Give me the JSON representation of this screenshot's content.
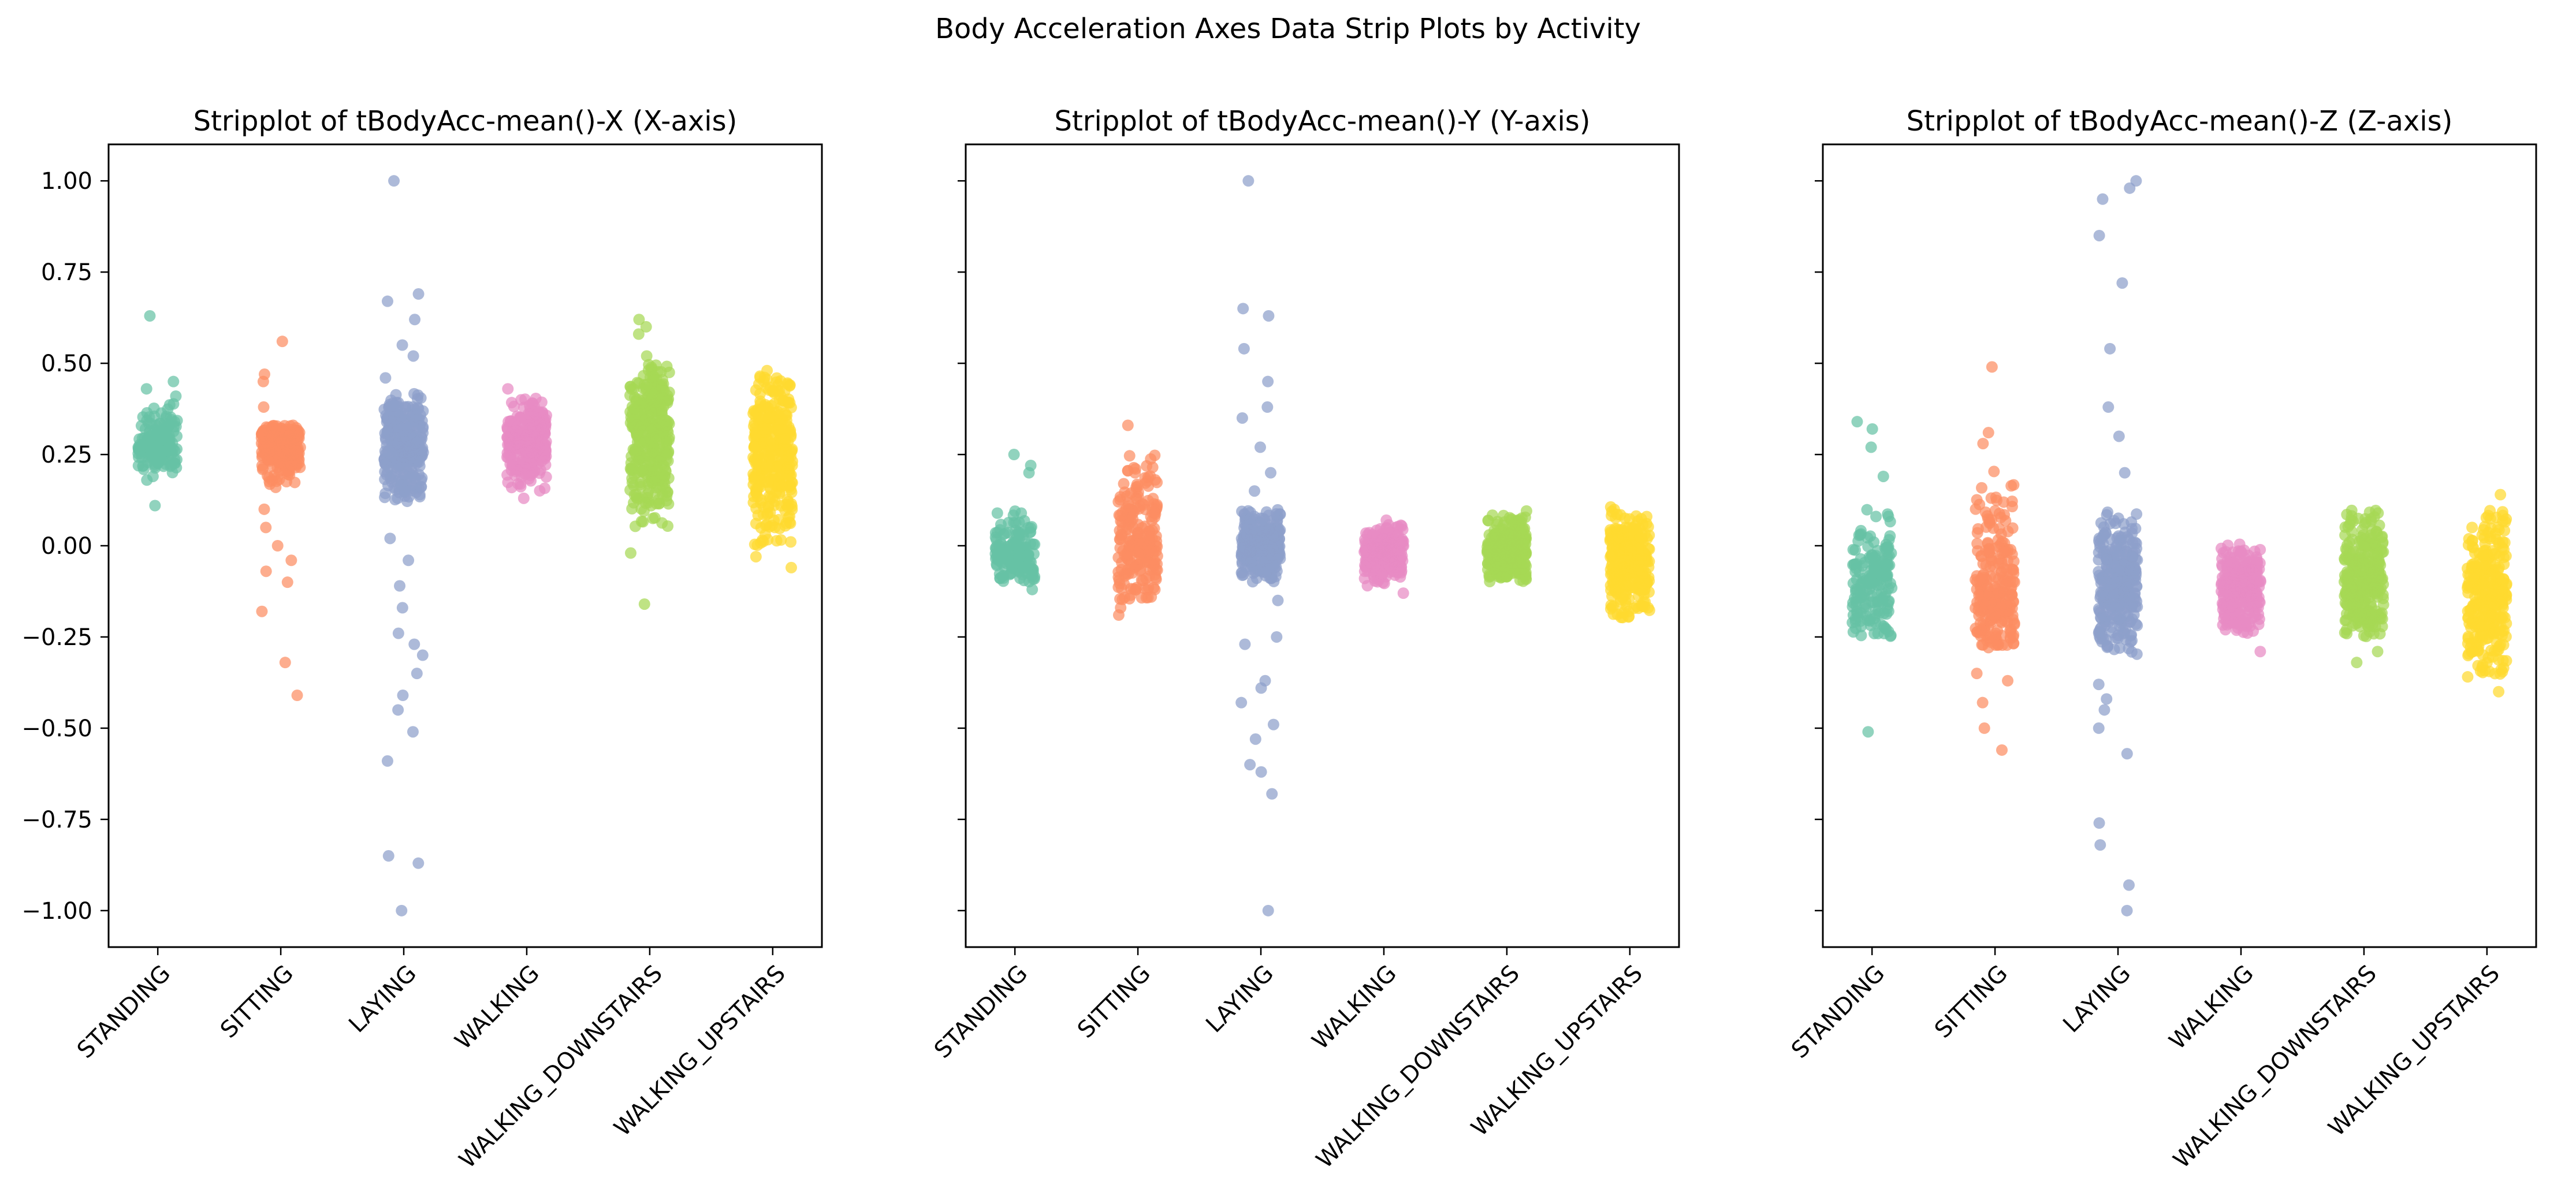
{
  "figure": {
    "suptitle": "Body Acceleration Axes Data Strip Plots by Activity"
  },
  "chart_data": [
    {
      "type": "scatter",
      "subtype": "stripplot",
      "title": "Stripplot of tBodyAcc-mean()-X (X-axis)",
      "xlabel": "",
      "ylabel": "",
      "ylim": [
        -1.1,
        1.1
      ],
      "yticks": [
        -1.0,
        -0.75,
        -0.5,
        -0.25,
        0.0,
        0.25,
        0.5,
        0.75,
        1.0
      ],
      "ytick_labels": [
        "−1.00",
        "−0.75",
        "−0.50",
        "−0.25",
        "0.00",
        "0.25",
        "0.50",
        "0.75",
        "1.00"
      ],
      "shared_y": true,
      "categories": [
        "STANDING",
        "SITTING",
        "LAYING",
        "WALKING",
        "WALKING_DOWNSTAIRS",
        "WALKING_UPSTAIRS"
      ],
      "series": [
        {
          "category": "STANDING",
          "color": "#66c2a5",
          "dense_range": [
            0.2,
            0.4
          ],
          "center": 0.28,
          "outliers": [
            0.63,
            0.45,
            0.43,
            0.41,
            0.19,
            0.18,
            0.11
          ],
          "n": 150
        },
        {
          "category": "SITTING",
          "color": "#fc8d62",
          "dense_range": [
            0.15,
            0.33
          ],
          "center": 0.27,
          "outliers": [
            0.56,
            0.47,
            0.45,
            0.38,
            0.1,
            0.05,
            0.0,
            -0.04,
            -0.07,
            -0.1,
            -0.18,
            -0.32,
            -0.41
          ],
          "n": 220
        },
        {
          "category": "LAYING",
          "color": "#8da0cb",
          "dense_range": [
            0.12,
            0.42
          ],
          "center": 0.27,
          "outliers": [
            1.0,
            0.69,
            0.67,
            0.62,
            0.55,
            0.52,
            0.46,
            0.02,
            -0.04,
            -0.11,
            -0.17,
            -0.24,
            -0.27,
            -0.3,
            -0.35,
            -0.41,
            -0.45,
            -0.51,
            -0.59,
            -0.85,
            -0.87,
            -1.0
          ],
          "n": 280
        },
        {
          "category": "WALKING",
          "color": "#e78ac3",
          "dense_range": [
            0.15,
            0.41
          ],
          "center": 0.28,
          "outliers": [
            0.43,
            0.13
          ],
          "n": 260
        },
        {
          "category": "WALKING_DOWNSTAIRS",
          "color": "#a6d854",
          "dense_range": [
            0.05,
            0.5
          ],
          "center": 0.28,
          "outliers": [
            0.62,
            0.6,
            0.58,
            0.52,
            -0.02,
            -0.16
          ],
          "n": 320
        },
        {
          "category": "WALKING_UPSTAIRS",
          "color": "#ffd92f",
          "dense_range": [
            0.0,
            0.47
          ],
          "center": 0.25,
          "outliers": [
            0.48,
            -0.03,
            -0.06
          ],
          "n": 320
        }
      ]
    },
    {
      "type": "scatter",
      "subtype": "stripplot",
      "title": "Stripplot of tBodyAcc-mean()-Y (Y-axis)",
      "xlabel": "",
      "ylabel": "",
      "ylim": [
        -1.1,
        1.1
      ],
      "shared_y": true,
      "categories": [
        "STANDING",
        "SITTING",
        "LAYING",
        "WALKING",
        "WALKING_DOWNSTAIRS",
        "WALKING_UPSTAIRS"
      ],
      "series": [
        {
          "category": "STANDING",
          "color": "#66c2a5",
          "dense_range": [
            -0.1,
            0.1
          ],
          "center": -0.02,
          "outliers": [
            0.25,
            0.22,
            0.2,
            -0.12
          ],
          "n": 150
        },
        {
          "category": "SITTING",
          "color": "#fc8d62",
          "dense_range": [
            -0.15,
            0.27
          ],
          "center": 0.01,
          "outliers": [
            0.33,
            -0.19,
            -0.17
          ],
          "n": 220
        },
        {
          "category": "LAYING",
          "color": "#8da0cb",
          "dense_range": [
            -0.1,
            0.1
          ],
          "center": 0.0,
          "outliers": [
            1.0,
            0.65,
            0.63,
            0.54,
            0.45,
            0.38,
            0.35,
            0.27,
            0.2,
            0.15,
            -0.15,
            -0.25,
            -0.27,
            -0.37,
            -0.39,
            -0.43,
            -0.49,
            -0.53,
            -0.6,
            -0.62,
            -0.68,
            -1.0
          ],
          "n": 260
        },
        {
          "category": "WALKING",
          "color": "#e78ac3",
          "dense_range": [
            -0.11,
            0.06
          ],
          "center": -0.02,
          "outliers": [
            0.07,
            -0.13
          ],
          "n": 240
        },
        {
          "category": "WALKING_DOWNSTAIRS",
          "color": "#a6d854",
          "dense_range": [
            -0.1,
            0.1
          ],
          "center": -0.01,
          "outliers": [],
          "n": 260
        },
        {
          "category": "WALKING_UPSTAIRS",
          "color": "#ffd92f",
          "dense_range": [
            -0.2,
            0.11
          ],
          "center": -0.05,
          "outliers": [],
          "n": 300
        }
      ]
    },
    {
      "type": "scatter",
      "subtype": "stripplot",
      "title": "Stripplot of tBodyAcc-mean()-Z (Z-axis)",
      "xlabel": "",
      "ylabel": "",
      "ylim": [
        -1.1,
        1.1
      ],
      "shared_y": true,
      "categories": [
        "STANDING",
        "SITTING",
        "LAYING",
        "WALKING",
        "WALKING_DOWNSTAIRS",
        "WALKING_UPSTAIRS"
      ],
      "series": [
        {
          "category": "STANDING",
          "color": "#66c2a5",
          "dense_range": [
            -0.26,
            0.1
          ],
          "center": -0.11,
          "outliers": [
            0.34,
            0.32,
            0.27,
            0.19,
            -0.51
          ],
          "n": 170
        },
        {
          "category": "SITTING",
          "color": "#fc8d62",
          "dense_range": [
            -0.28,
            0.22
          ],
          "center": -0.1,
          "outliers": [
            0.49,
            0.31,
            0.28,
            -0.35,
            -0.37,
            -0.43,
            -0.5,
            -0.56
          ],
          "n": 240
        },
        {
          "category": "LAYING",
          "color": "#8da0cb",
          "dense_range": [
            -0.3,
            0.1
          ],
          "center": -0.1,
          "outliers": [
            1.0,
            0.98,
            0.95,
            0.85,
            0.72,
            0.54,
            0.38,
            0.3,
            0.2,
            -0.38,
            -0.42,
            -0.45,
            -0.5,
            -0.57,
            -0.76,
            -0.82,
            -0.93,
            -1.0
          ],
          "n": 270
        },
        {
          "category": "WALKING",
          "color": "#e78ac3",
          "dense_range": [
            -0.26,
            0.01
          ],
          "center": -0.12,
          "outliers": [
            -0.29
          ],
          "n": 250
        },
        {
          "category": "WALKING_DOWNSTAIRS",
          "color": "#a6d854",
          "dense_range": [
            -0.25,
            0.1
          ],
          "center": -0.1,
          "outliers": [
            -0.29,
            -0.32
          ],
          "n": 280
        },
        {
          "category": "WALKING_UPSTAIRS",
          "color": "#ffd92f",
          "dense_range": [
            -0.36,
            0.1
          ],
          "center": -0.15,
          "outliers": [
            0.14,
            -0.4
          ],
          "n": 300
        }
      ]
    }
  ]
}
